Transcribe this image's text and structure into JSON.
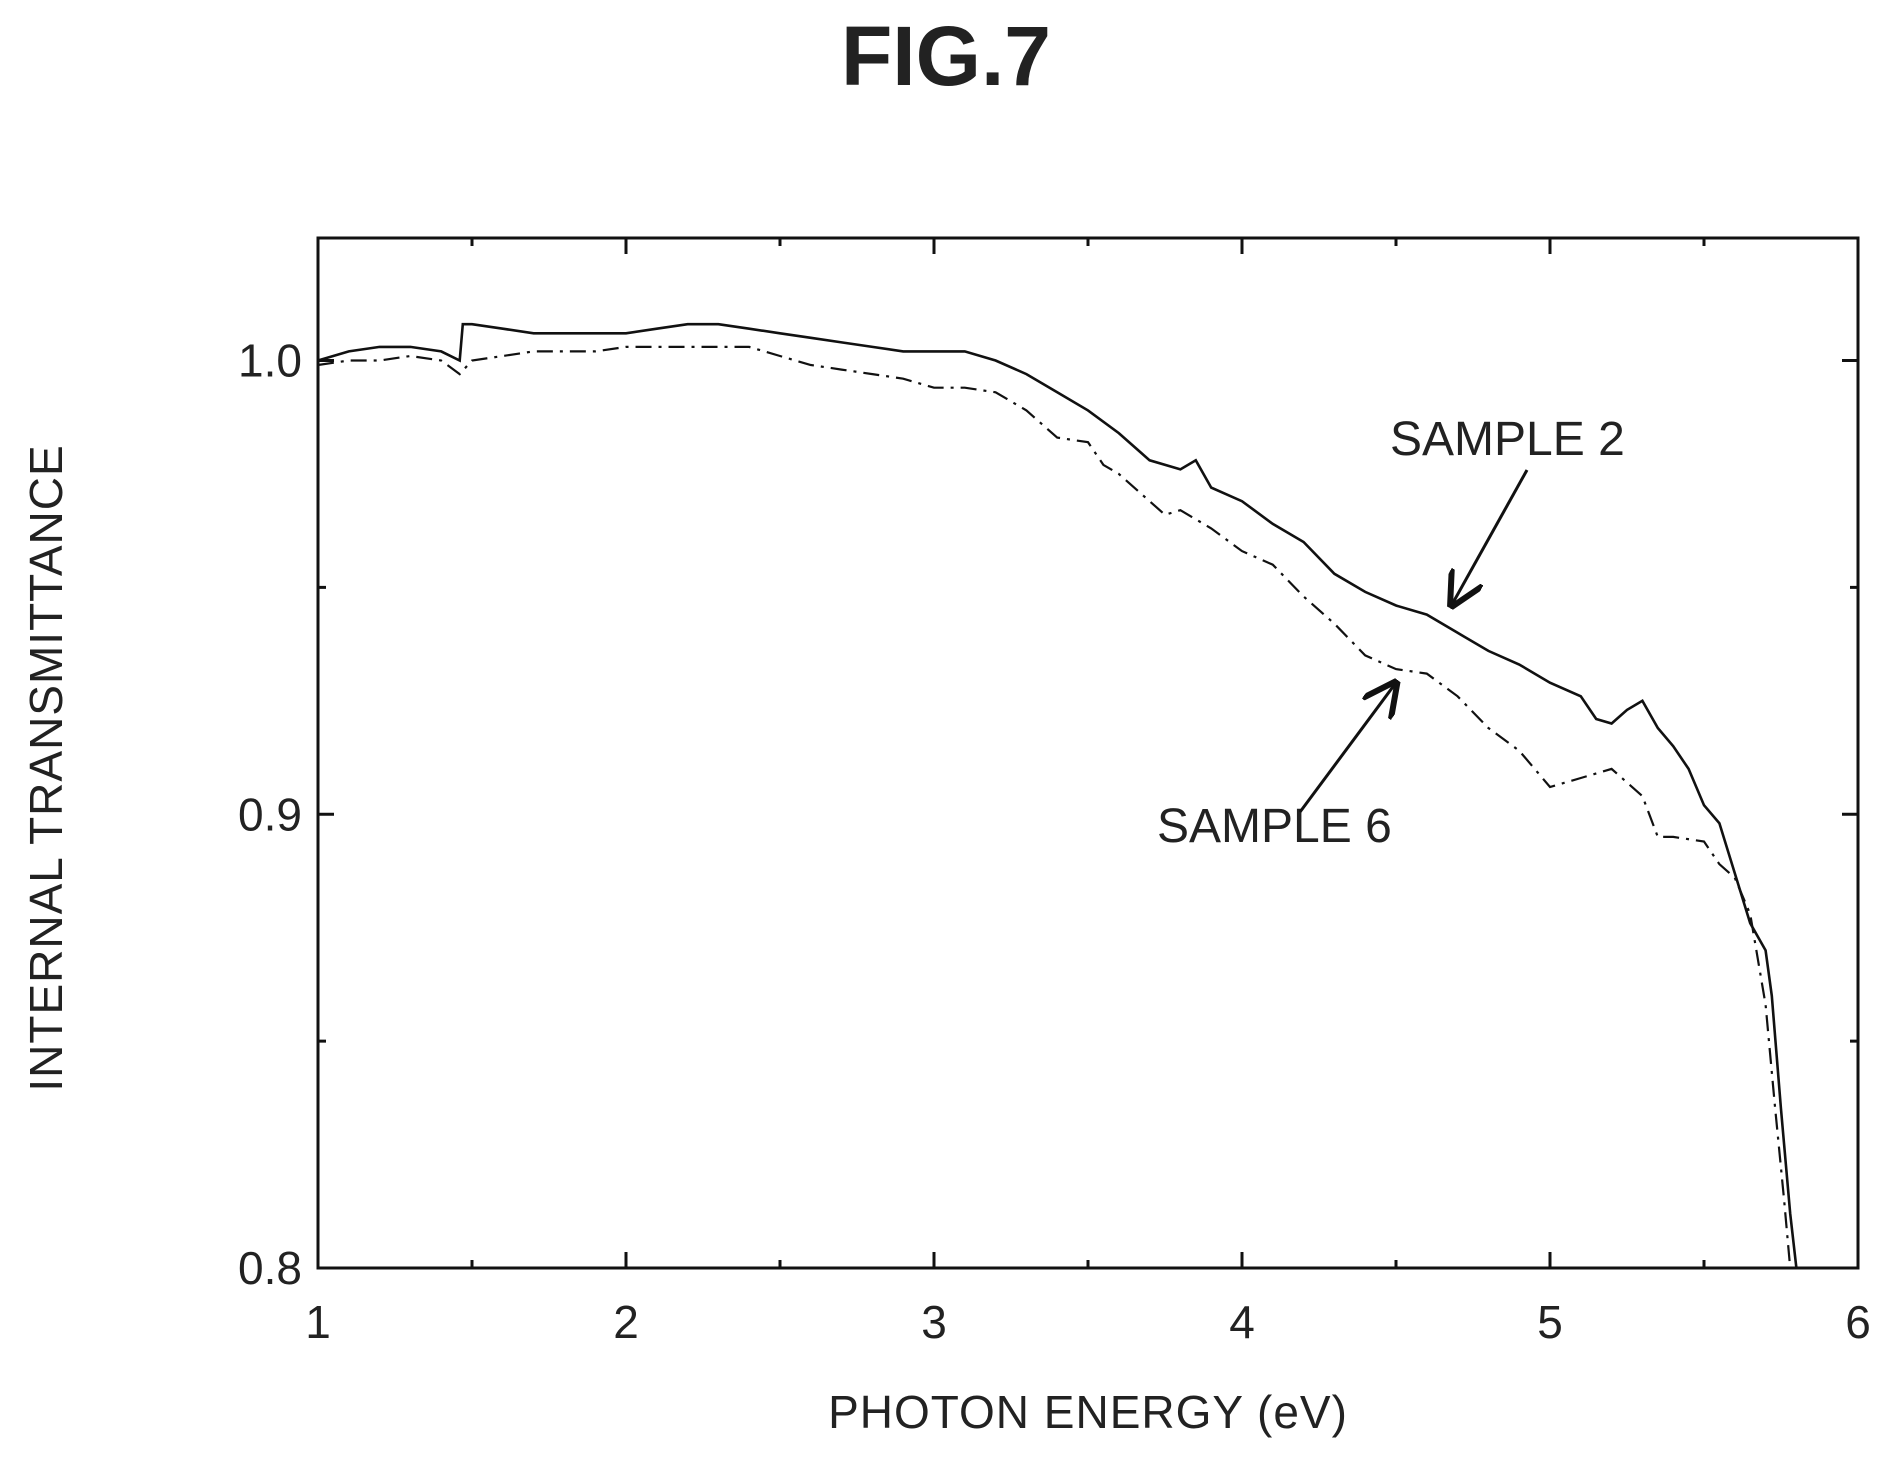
{
  "figure": {
    "label": "FIG.7"
  },
  "chart_data": {
    "type": "line",
    "title": "FIG.7",
    "xlabel": "PHOTON ENERGY (eV)",
    "ylabel": "INTERNAL TRANSMITTANCE",
    "xlim": [
      1,
      6
    ],
    "ylim": [
      0.8,
      1.027
    ],
    "x_major_ticks": [
      1,
      2,
      3,
      4,
      5,
      6
    ],
    "x_tick_labels": [
      "1",
      "2",
      "3",
      "4",
      "5",
      "6"
    ],
    "x_minor_ticks": [
      1.5,
      2.5,
      3.5,
      4.5,
      5.5
    ],
    "y_major_ticks": [
      0.8,
      0.9,
      1.0
    ],
    "y_tick_labels": [
      "0.8",
      "0.9",
      "1.0"
    ],
    "y_minor_ticks": [
      0.85,
      0.95
    ],
    "grid": false,
    "legend": "none",
    "series": [
      {
        "name": "SAMPLE 2",
        "style": "solid",
        "x": [
          1.0,
          1.1,
          1.2,
          1.3,
          1.4,
          1.46,
          1.47,
          1.5,
          1.6,
          1.7,
          1.8,
          1.9,
          2.0,
          2.1,
          2.2,
          2.3,
          2.4,
          2.5,
          2.6,
          2.7,
          2.8,
          2.9,
          3.0,
          3.1,
          3.2,
          3.3,
          3.4,
          3.5,
          3.6,
          3.7,
          3.8,
          3.85,
          3.9,
          4.0,
          4.1,
          4.2,
          4.3,
          4.4,
          4.5,
          4.6,
          4.7,
          4.8,
          4.9,
          5.0,
          5.1,
          5.15,
          5.2,
          5.25,
          5.3,
          5.35,
          5.4,
          5.45,
          5.5,
          5.55,
          5.6,
          5.65,
          5.7,
          5.72,
          5.75,
          5.78,
          5.8
        ],
        "y": [
          1.0,
          1.002,
          1.003,
          1.003,
          1.002,
          1.0,
          1.008,
          1.008,
          1.007,
          1.006,
          1.006,
          1.006,
          1.006,
          1.007,
          1.008,
          1.008,
          1.007,
          1.006,
          1.005,
          1.004,
          1.003,
          1.002,
          1.002,
          1.002,
          1.0,
          0.997,
          0.993,
          0.989,
          0.984,
          0.978,
          0.976,
          0.978,
          0.972,
          0.969,
          0.964,
          0.96,
          0.953,
          0.949,
          0.946,
          0.944,
          0.94,
          0.936,
          0.933,
          0.929,
          0.926,
          0.921,
          0.92,
          0.923,
          0.925,
          0.919,
          0.915,
          0.91,
          0.902,
          0.898,
          0.887,
          0.876,
          0.87,
          0.86,
          0.835,
          0.812,
          0.8
        ]
      },
      {
        "name": "SAMPLE 6",
        "style": "dash-dot",
        "x": [
          1.0,
          1.1,
          1.2,
          1.3,
          1.4,
          1.46,
          1.5,
          1.6,
          1.7,
          1.8,
          1.9,
          2.0,
          2.1,
          2.2,
          2.3,
          2.4,
          2.5,
          2.6,
          2.7,
          2.8,
          2.9,
          3.0,
          3.1,
          3.2,
          3.3,
          3.4,
          3.5,
          3.55,
          3.6,
          3.7,
          3.75,
          3.8,
          3.9,
          4.0,
          4.1,
          4.2,
          4.3,
          4.4,
          4.5,
          4.6,
          4.7,
          4.8,
          4.9,
          5.0,
          5.1,
          5.2,
          5.3,
          5.35,
          5.4,
          5.5,
          5.55,
          5.6,
          5.65,
          5.7,
          5.73,
          5.76,
          5.78
        ],
        "y": [
          0.999,
          1.0,
          1.0,
          1.001,
          1.0,
          0.997,
          1.0,
          1.001,
          1.002,
          1.002,
          1.002,
          1.003,
          1.003,
          1.003,
          1.003,
          1.003,
          1.001,
          0.999,
          0.998,
          0.997,
          0.996,
          0.994,
          0.994,
          0.993,
          0.989,
          0.983,
          0.982,
          0.977,
          0.975,
          0.969,
          0.966,
          0.967,
          0.963,
          0.958,
          0.955,
          0.948,
          0.942,
          0.935,
          0.932,
          0.931,
          0.926,
          0.919,
          0.914,
          0.906,
          0.908,
          0.91,
          0.904,
          0.895,
          0.895,
          0.894,
          0.889,
          0.886,
          0.878,
          0.858,
          0.836,
          0.815,
          0.8
        ]
      }
    ],
    "annotations": [
      {
        "text": "SAMPLE 2",
        "series": "SAMPLE 2",
        "arrow_to": [
          4.68,
          0.946
        ]
      },
      {
        "text": "SAMPLE 6",
        "series": "SAMPLE 6",
        "arrow_to": [
          4.5,
          0.929
        ]
      }
    ]
  }
}
